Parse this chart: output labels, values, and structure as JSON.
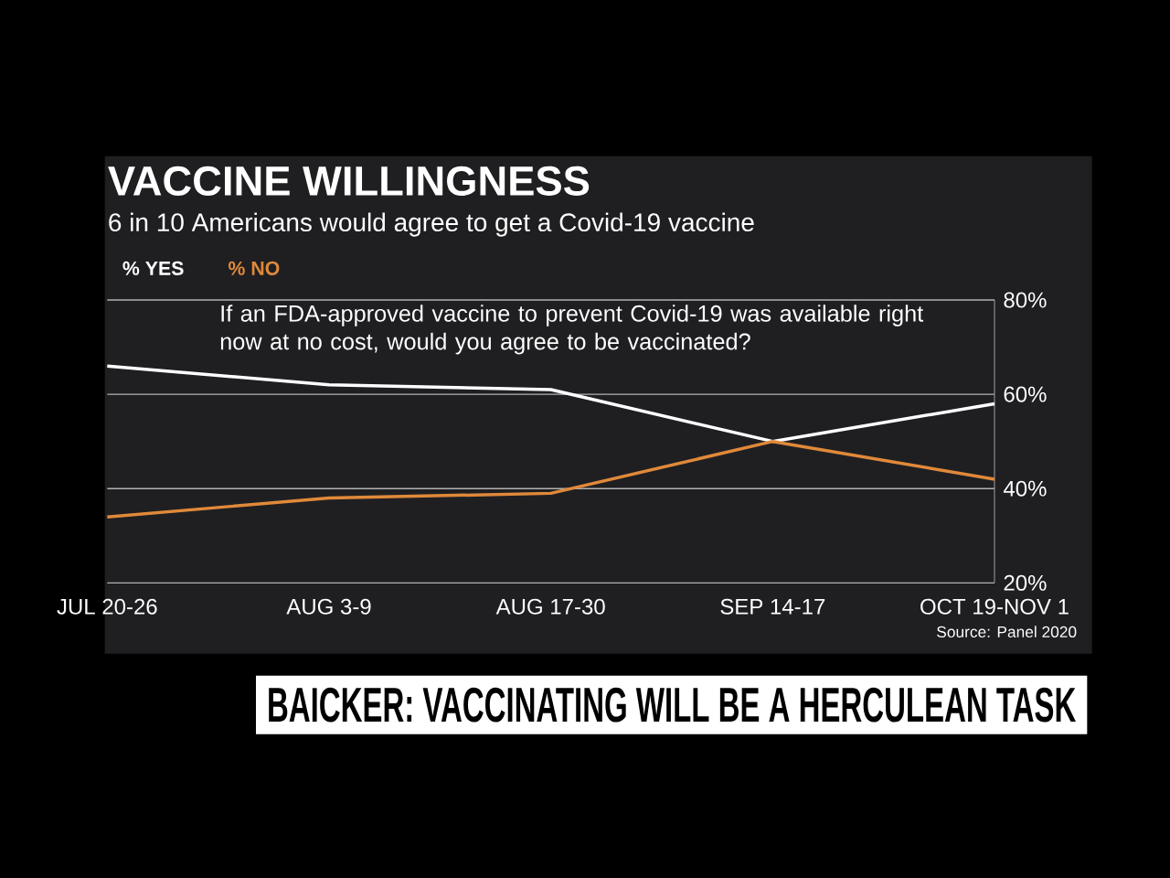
{
  "chart_data": {
    "type": "line",
    "title": "VACCINE WILLINGNESS",
    "subtitle": "6 in 10 Americans would agree to get a Covid-19 vaccine",
    "categories": [
      "JUL 20-26",
      "AUG 3-9",
      "AUG 17-30",
      "SEP 14-17",
      "OCT 19-NOV 1"
    ],
    "series": [
      {
        "name": "% YES",
        "color": "#ffffff",
        "values": [
          66,
          62,
          61,
          50,
          58
        ]
      },
      {
        "name": "% NO",
        "color": "#e0893a",
        "values": [
          34,
          38,
          39,
          50,
          42
        ]
      }
    ],
    "ylim": [
      20,
      80
    ],
    "yticks": [
      {
        "value": 20,
        "label": "20%"
      },
      {
        "value": 40,
        "label": "40%"
      },
      {
        "value": 60,
        "label": "60%"
      },
      {
        "value": 80,
        "label": "80%"
      }
    ],
    "grid": true,
    "legend": "top left",
    "annotations": [
      "If an FDA-approved vaccine to prevent Covid-19 was available right now at no cost, would you agree to be vaccinated?",
      "Source: Panel 2020",
      "BAICKER: VACCINATING WILL BE A HERCULEAN TASK"
    ]
  }
}
